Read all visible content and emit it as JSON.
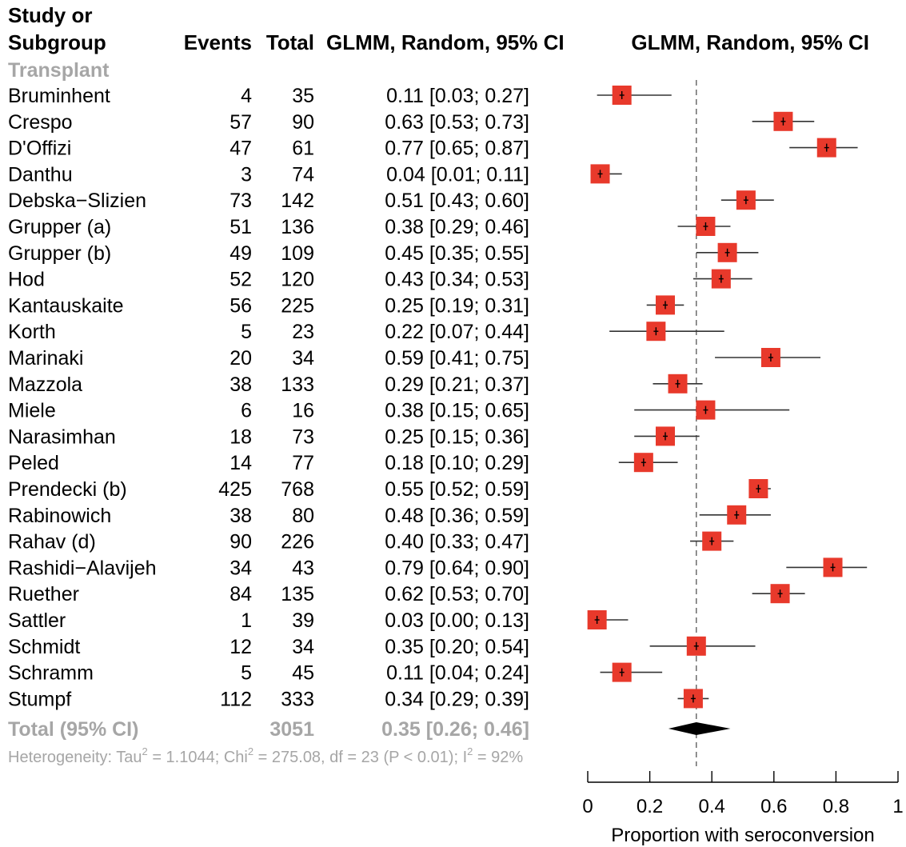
{
  "header": {
    "study_line1": "Study or",
    "study_line2": "Subgroup",
    "events": "Events",
    "total": "Total",
    "ci_col": "GLMM, Random, 95% CI",
    "plot_col": "GLMM, Random, 95% CI"
  },
  "subgroup_label": "Transplant",
  "total_row": {
    "label": "Total (95% CI)",
    "total": "3051",
    "ci_text": "0.35 [0.26; 0.46]"
  },
  "heterogeneity": {
    "part1": "Heterogeneity: Tau",
    "sup1": "2",
    "part2": " = 1.1044; Chi",
    "sup2": "2",
    "part3": " = 275.08, df = 23 (P < 0.01); I",
    "sup3": "2",
    "part4": " = 92%"
  },
  "colors": {
    "marker": "#e8392b",
    "diamond": "#000000",
    "grey_text": "#a6a6a6"
  },
  "chart_data": {
    "type": "forest",
    "xlabel": "Proportion with seroconversion",
    "xlim": [
      0,
      1
    ],
    "ticks": [
      0,
      0.2,
      0.4,
      0.6,
      0.8,
      1
    ],
    "tick_labels": [
      "0",
      "0.2",
      "0.4",
      "0.6",
      "0.8",
      "1"
    ],
    "reference_line": 0.35,
    "pooled": {
      "estimate": 0.35,
      "lower": 0.26,
      "upper": 0.46
    },
    "studies": [
      {
        "name": "Bruminhent",
        "events": 4,
        "total": 35,
        "estimate": 0.11,
        "lower": 0.03,
        "upper": 0.27,
        "ci_text": "0.11 [0.03; 0.27]"
      },
      {
        "name": "Crespo",
        "events": 57,
        "total": 90,
        "estimate": 0.63,
        "lower": 0.53,
        "upper": 0.73,
        "ci_text": "0.63 [0.53; 0.73]"
      },
      {
        "name": "D'Offizi",
        "events": 47,
        "total": 61,
        "estimate": 0.77,
        "lower": 0.65,
        "upper": 0.87,
        "ci_text": "0.77 [0.65; 0.87]"
      },
      {
        "name": "Danthu",
        "events": 3,
        "total": 74,
        "estimate": 0.04,
        "lower": 0.01,
        "upper": 0.11,
        "ci_text": "0.04 [0.01; 0.11]"
      },
      {
        "name": "Debska−Slizien",
        "events": 73,
        "total": 142,
        "estimate": 0.51,
        "lower": 0.43,
        "upper": 0.6,
        "ci_text": "0.51 [0.43; 0.60]"
      },
      {
        "name": "Grupper (a)",
        "events": 51,
        "total": 136,
        "estimate": 0.38,
        "lower": 0.29,
        "upper": 0.46,
        "ci_text": "0.38 [0.29; 0.46]"
      },
      {
        "name": "Grupper (b)",
        "events": 49,
        "total": 109,
        "estimate": 0.45,
        "lower": 0.35,
        "upper": 0.55,
        "ci_text": "0.45 [0.35; 0.55]"
      },
      {
        "name": "Hod",
        "events": 52,
        "total": 120,
        "estimate": 0.43,
        "lower": 0.34,
        "upper": 0.53,
        "ci_text": "0.43 [0.34; 0.53]"
      },
      {
        "name": "Kantauskaite",
        "events": 56,
        "total": 225,
        "estimate": 0.25,
        "lower": 0.19,
        "upper": 0.31,
        "ci_text": "0.25 [0.19; 0.31]"
      },
      {
        "name": "Korth",
        "events": 5,
        "total": 23,
        "estimate": 0.22,
        "lower": 0.07,
        "upper": 0.44,
        "ci_text": "0.22 [0.07; 0.44]"
      },
      {
        "name": "Marinaki",
        "events": 20,
        "total": 34,
        "estimate": 0.59,
        "lower": 0.41,
        "upper": 0.75,
        "ci_text": "0.59 [0.41; 0.75]"
      },
      {
        "name": "Mazzola",
        "events": 38,
        "total": 133,
        "estimate": 0.29,
        "lower": 0.21,
        "upper": 0.37,
        "ci_text": "0.29 [0.21; 0.37]"
      },
      {
        "name": "Miele",
        "events": 6,
        "total": 16,
        "estimate": 0.38,
        "lower": 0.15,
        "upper": 0.65,
        "ci_text": "0.38 [0.15; 0.65]"
      },
      {
        "name": "Narasimhan",
        "events": 18,
        "total": 73,
        "estimate": 0.25,
        "lower": 0.15,
        "upper": 0.36,
        "ci_text": "0.25 [0.15; 0.36]"
      },
      {
        "name": "Peled",
        "events": 14,
        "total": 77,
        "estimate": 0.18,
        "lower": 0.1,
        "upper": 0.29,
        "ci_text": "0.18 [0.10; 0.29]"
      },
      {
        "name": "Prendecki (b)",
        "events": 425,
        "total": 768,
        "estimate": 0.55,
        "lower": 0.52,
        "upper": 0.59,
        "ci_text": "0.55 [0.52; 0.59]"
      },
      {
        "name": "Rabinowich",
        "events": 38,
        "total": 80,
        "estimate": 0.48,
        "lower": 0.36,
        "upper": 0.59,
        "ci_text": "0.48 [0.36; 0.59]"
      },
      {
        "name": "Rahav (d)",
        "events": 90,
        "total": 226,
        "estimate": 0.4,
        "lower": 0.33,
        "upper": 0.47,
        "ci_text": "0.40 [0.33; 0.47]"
      },
      {
        "name": "Rashidi−Alavijeh",
        "events": 34,
        "total": 43,
        "estimate": 0.79,
        "lower": 0.64,
        "upper": 0.9,
        "ci_text": "0.79 [0.64; 0.90]"
      },
      {
        "name": "Ruether",
        "events": 84,
        "total": 135,
        "estimate": 0.62,
        "lower": 0.53,
        "upper": 0.7,
        "ci_text": "0.62 [0.53; 0.70]"
      },
      {
        "name": "Sattler",
        "events": 1,
        "total": 39,
        "estimate": 0.03,
        "lower": 0.0,
        "upper": 0.13,
        "ci_text": "0.03 [0.00; 0.13]"
      },
      {
        "name": "Schmidt",
        "events": 12,
        "total": 34,
        "estimate": 0.35,
        "lower": 0.2,
        "upper": 0.54,
        "ci_text": "0.35 [0.20; 0.54]"
      },
      {
        "name": "Schramm",
        "events": 5,
        "total": 45,
        "estimate": 0.11,
        "lower": 0.04,
        "upper": 0.24,
        "ci_text": "0.11 [0.04; 0.24]"
      },
      {
        "name": "Stumpf",
        "events": 112,
        "total": 333,
        "estimate": 0.34,
        "lower": 0.29,
        "upper": 0.39,
        "ci_text": "0.34 [0.29; 0.39]"
      }
    ]
  }
}
